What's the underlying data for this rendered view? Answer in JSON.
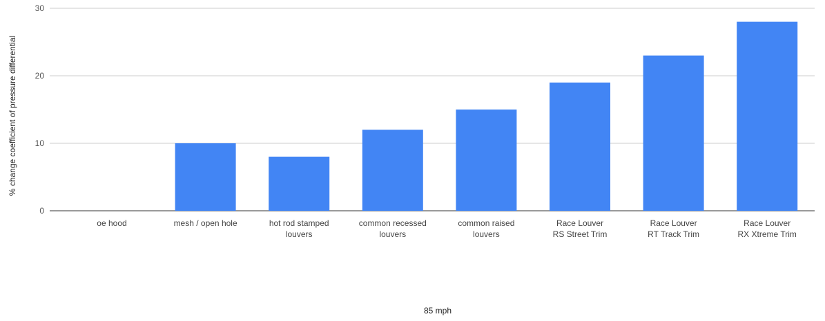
{
  "chart_data": {
    "type": "bar",
    "title": "",
    "xlabel": "85 mph",
    "ylabel": "% change coefficient of pressure differential",
    "ylim": [
      0,
      30
    ],
    "yticks": [
      0,
      10,
      20,
      30
    ],
    "grid": true,
    "legend": "none",
    "bar_color": "#4285f4",
    "categories": [
      [
        "oe hood"
      ],
      [
        "mesh / open hole"
      ],
      [
        "hot rod stamped",
        "louvers"
      ],
      [
        "common recessed",
        "louvers"
      ],
      [
        "common raised",
        "louvers"
      ],
      [
        "Race Louver",
        "RS Street Trim"
      ],
      [
        "Race Louver",
        "RT Track Trim"
      ],
      [
        "Race Louver",
        "RX Xtreme Trim"
      ]
    ],
    "values": [
      0,
      10,
      8,
      12,
      15,
      19,
      23,
      28
    ]
  }
}
